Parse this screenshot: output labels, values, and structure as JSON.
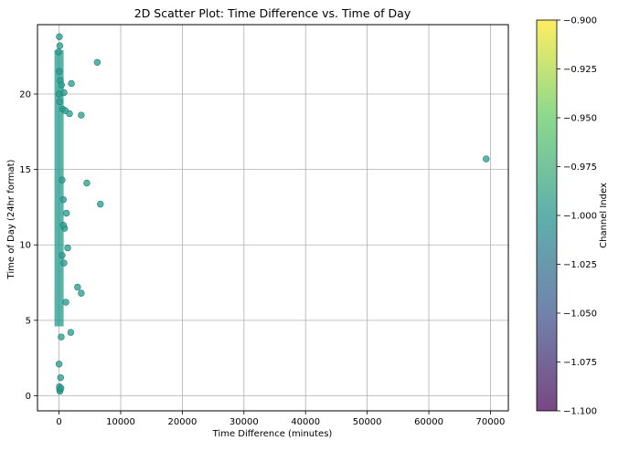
{
  "chart_data": {
    "type": "scatter",
    "title": "2D Scatter Plot: Time Difference vs. Time of Day",
    "xlabel": "Time Difference (minutes)",
    "ylabel": "Time of Day (24hr format)",
    "xlim": [
      -3500,
      72900
    ],
    "ylim": [
      -1.0,
      24.6
    ],
    "xticks": [
      0,
      10000,
      20000,
      30000,
      40000,
      50000,
      60000,
      70000
    ],
    "yticks": [
      0,
      5,
      10,
      15,
      20
    ],
    "grid": true,
    "point_color": "#2a9d8f",
    "point_edge_color": "#1f7f74",
    "series": [
      {
        "x": [
          50,
          120,
          -80,
          30,
          200,
          10,
          90,
          400,
          600,
          800,
          2000,
          6200,
          1000,
          3600,
          1700,
          4500,
          6700,
          1200,
          900,
          700,
          1400,
          3000,
          3600,
          1100,
          800,
          500,
          1900,
          350,
          250,
          100,
          69300,
          0,
          60,
          150,
          300,
          500,
          700
        ],
        "y": [
          23.8,
          23.2,
          22.8,
          21.5,
          20.9,
          20.0,
          19.5,
          20.6,
          19.0,
          20.1,
          20.7,
          22.1,
          18.9,
          18.6,
          18.7,
          14.1,
          12.7,
          12.1,
          11.1,
          11.3,
          9.8,
          7.2,
          6.8,
          6.2,
          8.8,
          9.3,
          4.2,
          3.9,
          1.2,
          0.4,
          15.7,
          2.1,
          0.6,
          0.3,
          0.5,
          14.3,
          13.0
        ]
      }
    ],
    "colorbar": {
      "label": "Channel Index",
      "range": [
        -1.1,
        -0.9
      ],
      "ticks": [
        -0.9,
        -0.925,
        -0.95,
        -0.975,
        -1.0,
        -1.025,
        -1.05,
        -1.075,
        -1.1
      ],
      "tick_labels": [
        "−0.900",
        "−0.925",
        "−0.950",
        "−0.975",
        "−1.000",
        "−1.025",
        "−1.050",
        "−1.075",
        "−1.100"
      ],
      "colormap_stops": [
        "#440154",
        "#3b528b",
        "#21918c",
        "#5ec962",
        "#fde725"
      ]
    }
  }
}
